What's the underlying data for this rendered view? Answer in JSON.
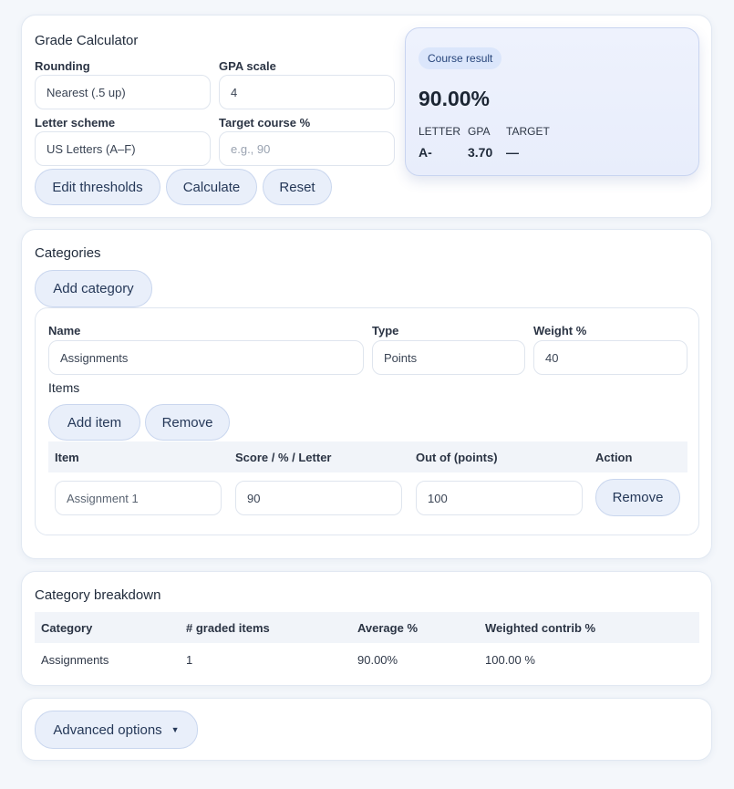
{
  "calculator": {
    "title": "Grade Calculator",
    "rounding_label": "Rounding",
    "rounding_value": "Nearest (.5 up)",
    "gpa_scale_label": "GPA scale",
    "gpa_scale_value": "4",
    "letter_scheme_label": "Letter scheme",
    "letter_scheme_value": "US Letters (A–F)",
    "target_label": "Target course %",
    "target_placeholder": "e.g., 90",
    "edit_thresholds": "Edit thresholds",
    "calculate": "Calculate",
    "reset": "Reset"
  },
  "result": {
    "badge": "Course result",
    "percent": "90.00%",
    "letter_label": "LETTER",
    "letter_value": "A-",
    "gpa_label": "GPA",
    "gpa_value": "3.70",
    "target_label": "TARGET",
    "target_value": "—"
  },
  "categories": {
    "title": "Categories",
    "add_category": "Add category",
    "name_label": "Name",
    "name_value": "Assignments",
    "type_label": "Type",
    "type_value": "Points",
    "weight_label": "Weight %",
    "weight_value": "40",
    "items_label": "Items",
    "add_item": "Add item",
    "remove": "Remove",
    "table_headers": [
      "Item",
      "Score / % / Letter",
      "Out of (points)",
      "Action"
    ],
    "rows": [
      {
        "item": "Assignment 1",
        "score": "90",
        "out_of": "100",
        "action": "Remove"
      }
    ]
  },
  "breakdown": {
    "title": "Category breakdown",
    "headers": [
      "Category",
      "# graded items",
      "Average %",
      "Weighted contrib %"
    ],
    "rows": [
      {
        "category": "Assignments",
        "graded": "1",
        "average": "90.00%",
        "weighted": "100.00 %"
      }
    ]
  },
  "advanced": {
    "label": "Advanced options",
    "caret": "▼"
  },
  "colors": {
    "accent": "#e9effa",
    "accent_border": "#c9d6ee",
    "result_bg": "#eef2fd",
    "page_bg": "#f4f7fb"
  }
}
